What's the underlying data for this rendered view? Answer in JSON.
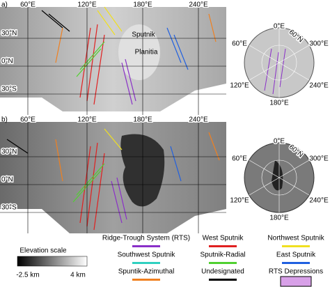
{
  "panel_a": {
    "label": "a)",
    "lon_labels": [
      "60°E",
      "120°E",
      "180°E",
      "240°E"
    ],
    "lat_labels": [
      "30°N",
      "0°N",
      "30°S"
    ],
    "feature_labels": [
      "Sputnik",
      "Planitia"
    ],
    "polar_labels": [
      "0°E",
      "60°N",
      "300°E",
      "60°E",
      "120°E",
      "240°E",
      "180°E"
    ]
  },
  "panel_b": {
    "label": "b)",
    "lon_labels": [
      "60°E",
      "120°E",
      "180°E",
      "240°E"
    ],
    "lat_labels": [
      "30°N",
      "0°N",
      "30°S"
    ],
    "polar_labels": [
      "0°E",
      "60°N",
      "300°E",
      "60°E",
      "120°E",
      "240°E",
      "180°E"
    ]
  },
  "legend": {
    "items": [
      {
        "label": "Ridge-Trough System (RTS)",
        "color": "#8a2fc8"
      },
      {
        "label": "West Sputnik",
        "color": "#e02020"
      },
      {
        "label": "Northwest Sputnik",
        "color": "#f0e020"
      },
      {
        "label": "Southwest Sputnik",
        "color": "#30d0c0"
      },
      {
        "label": "Sputnik-Radial",
        "color": "#50d030"
      },
      {
        "label": "East Sputnik",
        "color": "#2060e0"
      },
      {
        "label": "Spuntik-Azimuthal",
        "color": "#f08020"
      },
      {
        "label": "Undesignated",
        "color": "#000000"
      },
      {
        "label": "RTS Depressions",
        "color": "#d8a0e8"
      }
    ],
    "elevation_scale": {
      "title": "Elevation scale",
      "min_label": "-2.5 km",
      "max_label": "4 km"
    }
  }
}
